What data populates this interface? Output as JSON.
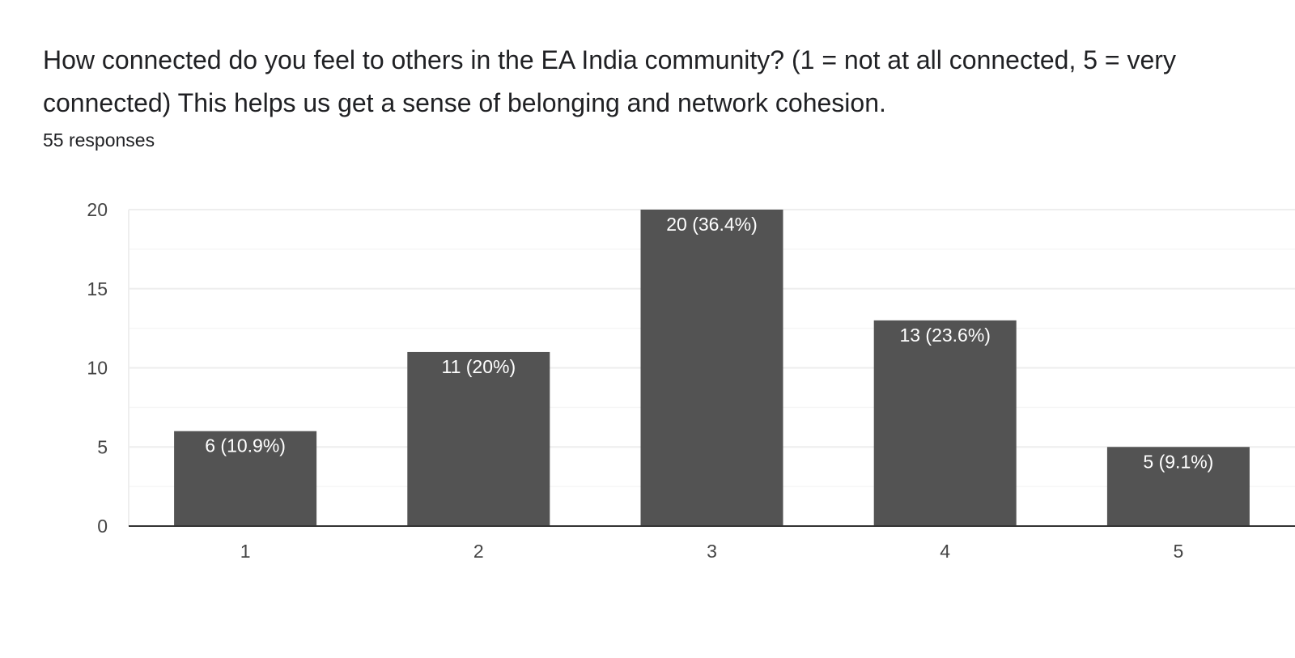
{
  "question": {
    "title": "How connected do you feel to others in the EA India community? (1 = not at all connected, 5 = very connected) This helps us get a sense of belonging and network cohesion.",
    "responses": "55 responses"
  },
  "colors": {
    "bar": "#535353",
    "grid_major": "#eeeeee",
    "grid_minor": "#f6f6f6",
    "baseline": "#333333",
    "bar_label": "#ffffff",
    "tick_label": "#444444"
  },
  "chart_data": {
    "type": "bar",
    "categories": [
      "1",
      "2",
      "3",
      "4",
      "5"
    ],
    "values": [
      6,
      11,
      20,
      13,
      5
    ],
    "data_labels": [
      "6 (10.9%)",
      "11 (20%)",
      "20 (36.4%)",
      "13 (23.6%)",
      "5 (9.1%)"
    ],
    "y_ticks": [
      0,
      5,
      10,
      15,
      20
    ],
    "ylim": [
      0,
      20
    ],
    "grid": true,
    "legend": "none"
  }
}
